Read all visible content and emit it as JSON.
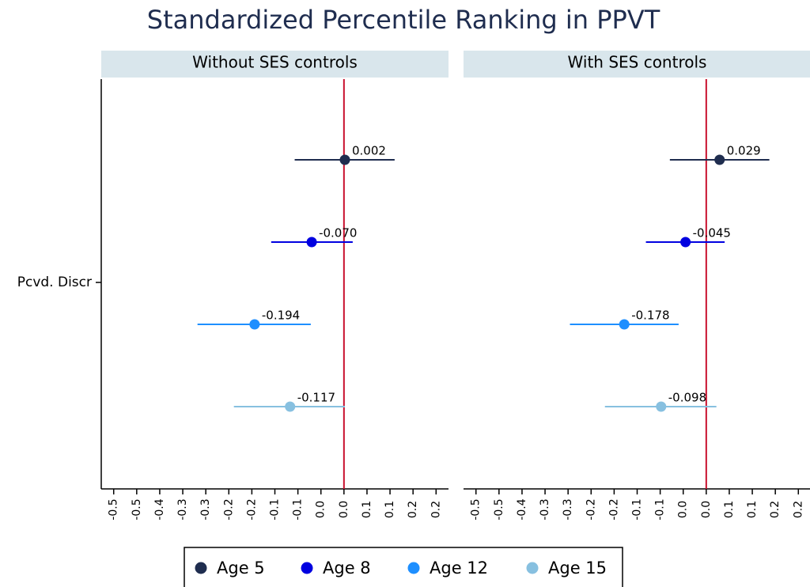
{
  "chart_data": {
    "type": "errorbar",
    "title": "Standardized Percentile Ranking in PPVT",
    "categories": [
      "Pcvd. Discr"
    ],
    "series": [
      {
        "name": "Age 5",
        "color": "#1f2d4f"
      },
      {
        "name": "Age 8",
        "color": "#0000e0"
      },
      {
        "name": "Age 12",
        "color": "#1e8fff"
      },
      {
        "name": "Age 15",
        "color": "#87c0e0"
      }
    ],
    "panels": [
      {
        "title": "Without SES controls",
        "series": [
          {
            "values": [
              0.002
            ],
            "value_labels": [
              "0.002"
            ],
            "lower": [
              -0.107
            ],
            "upper": [
              0.11
            ]
          },
          {
            "values": [
              -0.07
            ],
            "value_labels": [
              "-0.070"
            ],
            "lower": [
              -0.158
            ],
            "upper": [
              0.019
            ]
          },
          {
            "values": [
              -0.194
            ],
            "value_labels": [
              "-0.194"
            ],
            "lower": [
              -0.318
            ],
            "upper": [
              -0.072
            ]
          },
          {
            "values": [
              -0.117
            ],
            "value_labels": [
              "-0.117"
            ],
            "lower": [
              -0.239
            ],
            "upper": [
              0.002
            ]
          }
        ]
      },
      {
        "title": "With SES controls",
        "series": [
          {
            "values": [
              0.029
            ],
            "value_labels": [
              "0.029"
            ],
            "lower": [
              -0.079
            ],
            "upper": [
              0.137
            ]
          },
          {
            "values": [
              -0.045
            ],
            "value_labels": [
              "-0.045"
            ],
            "lower": [
              -0.131
            ],
            "upper": [
              0.04
            ]
          },
          {
            "values": [
              -0.178
            ],
            "value_labels": [
              "-0.178"
            ],
            "lower": [
              -0.296
            ],
            "upper": [
              -0.06
            ]
          },
          {
            "values": [
              -0.098
            ],
            "value_labels": [
              "-0.098"
            ],
            "lower": [
              -0.22
            ],
            "upper": [
              0.022
            ]
          }
        ]
      }
    ],
    "xlim": [
      -0.527,
      0.227
    ],
    "xticks": [
      {
        "value": -0.5,
        "label": "-0.5"
      },
      {
        "value": -0.45,
        "label": "-0.5"
      },
      {
        "value": -0.4,
        "label": "-0.4"
      },
      {
        "value": -0.35,
        "label": "-0.3"
      },
      {
        "value": -0.3,
        "label": "-0.3"
      },
      {
        "value": -0.25,
        "label": "-0.2"
      },
      {
        "value": -0.2,
        "label": "-0.2"
      },
      {
        "value": -0.15,
        "label": "-0.1"
      },
      {
        "value": -0.1,
        "label": "-0.1"
      },
      {
        "value": -0.05,
        "label": "0.0"
      },
      {
        "value": 0,
        "label": "0.0"
      },
      {
        "value": 0.05,
        "label": "0.1"
      },
      {
        "value": 0.1,
        "label": "0.1"
      },
      {
        "value": 0.15,
        "label": "0.2"
      },
      {
        "value": 0.2,
        "label": "0.2"
      }
    ],
    "xline": 0,
    "xline_color": "#c8102e"
  }
}
